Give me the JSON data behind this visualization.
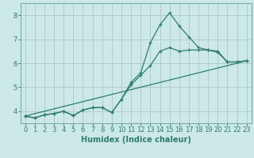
{
  "xlabel": "Humidex (Indice chaleur)",
  "background_color": "#cce8e8",
  "grid_color": "#b0cccc",
  "line_color": "#2e7d6e",
  "xlim": [
    -0.5,
    23.5
  ],
  "ylim": [
    3.5,
    8.5
  ],
  "xticks": [
    0,
    1,
    2,
    3,
    4,
    5,
    6,
    7,
    8,
    9,
    10,
    11,
    12,
    13,
    14,
    15,
    16,
    17,
    18,
    19,
    20,
    21,
    22,
    23
  ],
  "yticks": [
    4,
    5,
    6,
    7,
    8
  ],
  "lines": [
    {
      "x": [
        0,
        1,
        2,
        3,
        4,
        5,
        6,
        7,
        8,
        9,
        10,
        11,
        12,
        13,
        14,
        15,
        16,
        17,
        18,
        19,
        20,
        21,
        22,
        23
      ],
      "y": [
        3.8,
        3.72,
        3.85,
        3.9,
        4.0,
        3.82,
        4.05,
        4.15,
        4.15,
        3.95,
        4.5,
        5.2,
        5.6,
        6.85,
        7.6,
        8.1,
        7.55,
        7.1,
        6.65,
        6.55,
        6.45,
        6.05,
        6.05,
        6.1
      ]
    },
    {
      "x": [
        0,
        1,
        2,
        3,
        4,
        5,
        6,
        7,
        8,
        9,
        10,
        11,
        12,
        13,
        14,
        15,
        16,
        17,
        18,
        19,
        20,
        21,
        22,
        23
      ],
      "y": [
        3.8,
        3.72,
        3.85,
        3.9,
        4.0,
        3.82,
        4.05,
        4.15,
        4.15,
        3.95,
        4.5,
        5.1,
        5.5,
        5.9,
        6.5,
        6.65,
        6.5,
        6.55,
        6.55,
        6.55,
        6.5,
        6.05,
        6.05,
        6.1
      ]
    },
    {
      "x": [
        0,
        23
      ],
      "y": [
        3.8,
        6.1
      ]
    }
  ]
}
